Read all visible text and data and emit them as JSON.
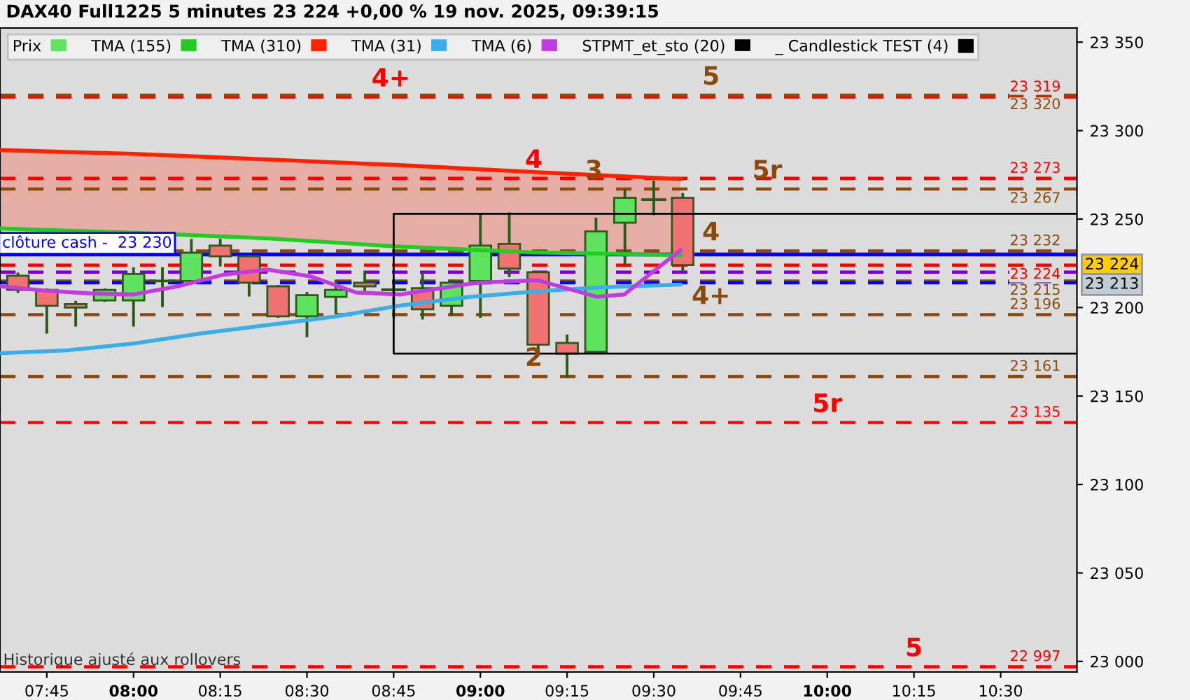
{
  "chart_data": {
    "type": "candlestick",
    "title": "DAX40 Full1225 5 minutes 23 224 +0,00 % 19 nov. 2025, 09:39:15",
    "legend": "top left",
    "grid": false,
    "xlim": [
      7.615,
      10.72
    ],
    "ylim": [
      22994,
      23358
    ],
    "xticks": [
      {
        "value": 7.75,
        "label": "07:45"
      },
      {
        "value": 8,
        "label": "08:00"
      },
      {
        "value": 8.25,
        "label": "08:15"
      },
      {
        "value": 8.5,
        "label": "08:30"
      },
      {
        "value": 8.75,
        "label": "08:45"
      },
      {
        "value": 9,
        "label": "09:00"
      },
      {
        "value": 9.25,
        "label": "09:15"
      },
      {
        "value": 9.5,
        "label": "09:30"
      },
      {
        "value": 9.75,
        "label": "09:45"
      },
      {
        "value": 10,
        "label": "10:00"
      },
      {
        "value": 10.25,
        "label": "10:15"
      },
      {
        "value": 10.5,
        "label": "10:30"
      }
    ],
    "yticks": [
      {
        "value": 23000,
        "label": "23 000"
      },
      {
        "value": 23050,
        "label": "23 050"
      },
      {
        "value": 23100,
        "label": "23 100"
      },
      {
        "value": 23150,
        "label": "23 150"
      },
      {
        "value": 23200,
        "label": "23 200"
      },
      {
        "value": 23250,
        "label": "23 250"
      },
      {
        "value": 23300,
        "label": "23 300"
      },
      {
        "value": 23350,
        "label": "23 350"
      }
    ],
    "series": [
      {
        "type": "candlestick",
        "name": "Prix",
        "x": [
          7.6667,
          7.75,
          7.8333,
          7.9167,
          8,
          8.0833,
          8.1667,
          8.25,
          8.3333,
          8.4167,
          8.5,
          8.5833,
          8.6667,
          8.75,
          8.8333,
          8.9167,
          9,
          9.0833,
          9.1667,
          9.25,
          9.3333,
          9.4167,
          9.5,
          9.5833
        ],
        "ohlc": [
          [
            23218,
            23219,
            23209,
            23210
          ],
          [
            23210,
            23210,
            23186,
            23201
          ],
          [
            23202,
            23203,
            23190,
            23200
          ],
          [
            23204,
            23210,
            23204,
            23210
          ],
          [
            23204,
            23222,
            23190,
            23219
          ],
          [
            23215,
            23222,
            23201,
            23215
          ],
          [
            23215,
            23238,
            23215,
            23231
          ],
          [
            23235,
            23238,
            23224,
            23229
          ],
          [
            23229,
            23229,
            23207,
            23214
          ],
          [
            23212,
            23212,
            23195,
            23195
          ],
          [
            23195,
            23208,
            23184,
            23207
          ],
          [
            23206,
            23215,
            23197,
            23210
          ],
          [
            23214,
            23220,
            23208,
            23212
          ],
          [
            23210,
            23215,
            23195,
            23210
          ],
          [
            23211,
            23219,
            23194,
            23199
          ],
          [
            23201,
            23215,
            23196,
            23214
          ],
          [
            23215,
            23252,
            23195,
            23235
          ],
          [
            23236,
            23253,
            23218,
            23222
          ],
          [
            23220,
            23220,
            23175,
            23179
          ],
          [
            23180,
            23184,
            23161,
            23174
          ],
          [
            23175,
            23250,
            23175,
            23243
          ],
          [
            23248,
            23266,
            23225,
            23262
          ],
          [
            23261,
            23271,
            23253,
            23261
          ],
          [
            23262,
            23264,
            23221,
            23224
          ]
        ],
        "colors": [
          "#f07272",
          "#f07272",
          "#f07272",
          "#5ee35e",
          "#5ee35e",
          "#2b5a1a",
          "#5ee35e",
          "#f07272",
          "#f07272",
          "#f07272",
          "#5ee35e",
          "#5ee35e",
          "#f07272",
          "#2b5a1a",
          "#f07272",
          "#5ee35e",
          "#5ee35e",
          "#f07272",
          "#f07272",
          "#f07272",
          "#5ee35e",
          "#5ee35e",
          "#2b5a1a",
          "#f07272"
        ]
      },
      {
        "type": "line",
        "name": "TMA (155)",
        "color": "#22cc22",
        "x": [
          7.615,
          8.0,
          8.385,
          8.769,
          9.154,
          9.577
        ],
        "values": [
          23244.7,
          23242.3,
          23239.1,
          23234.4,
          23231.2,
          23229.6
        ]
      },
      {
        "type": "line",
        "name": "TMA (310)",
        "color": "#ff2200",
        "x": [
          7.615,
          8.0,
          8.385,
          8.769,
          9.154,
          9.577
        ],
        "values": [
          23289,
          23286.9,
          23283.7,
          23280.5,
          23276.6,
          23272.6
        ],
        "lower": [
          23244.7,
          23242.3,
          23239.1,
          23234.4,
          23231.2,
          23229.6
        ],
        "upper": [
          23289,
          23286.9,
          23283.7,
          23280.5,
          23276.6,
          23272.6
        ]
      },
      {
        "type": "line",
        "name": "TMA (31)",
        "color": "#3aaee8",
        "x": [
          7.615,
          7.808,
          8.0,
          8.192,
          8.385,
          8.577,
          8.769,
          8.962,
          9.154,
          9.346,
          9.577
        ],
        "values": [
          23174.2,
          23175.8,
          23179.7,
          23185.3,
          23190,
          23194.8,
          23201.1,
          23205.9,
          23209,
          23211.4,
          23213
        ]
      },
      {
        "type": "line",
        "name": "TMA (6)",
        "color": "#c03ce0",
        "x": [
          7.615,
          7.742,
          7.873,
          8.0,
          8.127,
          8.258,
          8.385,
          8.512,
          8.642,
          8.769,
          8.988,
          9.165,
          9.335,
          9.415,
          9.577
        ],
        "values": [
          23212,
          23209.6,
          23208,
          23207.4,
          23212,
          23218.5,
          23221.5,
          23217.5,
          23208.5,
          23207.4,
          23214,
          23215.4,
          23206.1,
          23207.4,
          23232.5
        ]
      },
      {
        "type": "line",
        "name": "STPMT_et_sto (20)",
        "color": "#000000",
        "x": [
          10.72,
          8.75,
          8.75,
          10.72
        ],
        "values": [
          23253,
          23253,
          23174,
          23174
        ]
      }
    ],
    "ref_lines": [
      {
        "axis": "y",
        "value": 23319,
        "label": "23 319",
        "color": "#ff0000",
        "line_style": "dashed"
      },
      {
        "axis": "y",
        "value": 23320,
        "label": "23 320",
        "color": "#8b4a0c",
        "line_style": "dashed"
      },
      {
        "axis": "y",
        "value": 23273,
        "label": "23 273",
        "color": "#ff0000",
        "line_style": "dashed"
      },
      {
        "axis": "y",
        "value": 23267,
        "label": "23 267",
        "color": "#8b4a0c",
        "line_style": "dashed"
      },
      {
        "axis": "y",
        "value": 23232,
        "label": "23 232",
        "color": "#8b4a0c",
        "line_style": "dashed"
      },
      {
        "axis": "y",
        "value": 23230,
        "label": "clôture cash -  23 230",
        "color": "#0000ff",
        "line_style": "solid"
      },
      {
        "axis": "y",
        "value": 23224,
        "label": "23 224",
        "color": "#ff0000",
        "line_style": "dashed"
      },
      {
        "axis": "y",
        "value": 23220,
        "color": "#7a00cc",
        "line_style": "dashed"
      },
      {
        "axis": "y",
        "value": 23215,
        "label": "23 215",
        "color": "#8b4a0c",
        "line_style": "dashed"
      },
      {
        "axis": "y",
        "value": 23214,
        "color": "#0000ff",
        "line_style": "dashed"
      },
      {
        "axis": "y",
        "value": 23196,
        "label": "23 196",
        "color": "#8b4a0c",
        "line_style": "dashed"
      },
      {
        "axis": "y",
        "value": 23161,
        "label": "23 161",
        "color": "#8b4a0c",
        "line_style": "dashed"
      },
      {
        "axis": "y",
        "value": 23135,
        "label": "23 135",
        "color": "#ff0000",
        "line_style": "dashed"
      },
      {
        "axis": "y",
        "value": 22997,
        "label": "22 997",
        "color": "#ff0000",
        "line_style": "dashed"
      }
    ],
    "annotations": [
      {
        "text": "4+",
        "x": 8.742,
        "y": 23319
      },
      {
        "text": "5",
        "x": 9.665,
        "y": 23320
      },
      {
        "text": "4",
        "x": 9.154,
        "y": 23273
      },
      {
        "text": "3",
        "x": 9.327,
        "y": 23267
      },
      {
        "text": "5r",
        "x": 9.827,
        "y": 23267
      },
      {
        "text": "4",
        "x": 9.665,
        "y": 23232
      },
      {
        "text": "4+",
        "x": 9.665,
        "y": 23196
      },
      {
        "text": "2",
        "x": 9.154,
        "y": 23161
      },
      {
        "text": "5r",
        "x": 10.0,
        "y": 23135
      },
      {
        "text": "5",
        "x": 10.25,
        "y": 22997
      },
      {
        "text": "23 224",
        "x": 10.72,
        "y": 23224
      },
      {
        "text": "23 213",
        "x": 10.72,
        "y": 23213
      },
      "Historique ajusté aux rollovers",
      "_ Candlestick TEST (4)"
    ]
  }
}
